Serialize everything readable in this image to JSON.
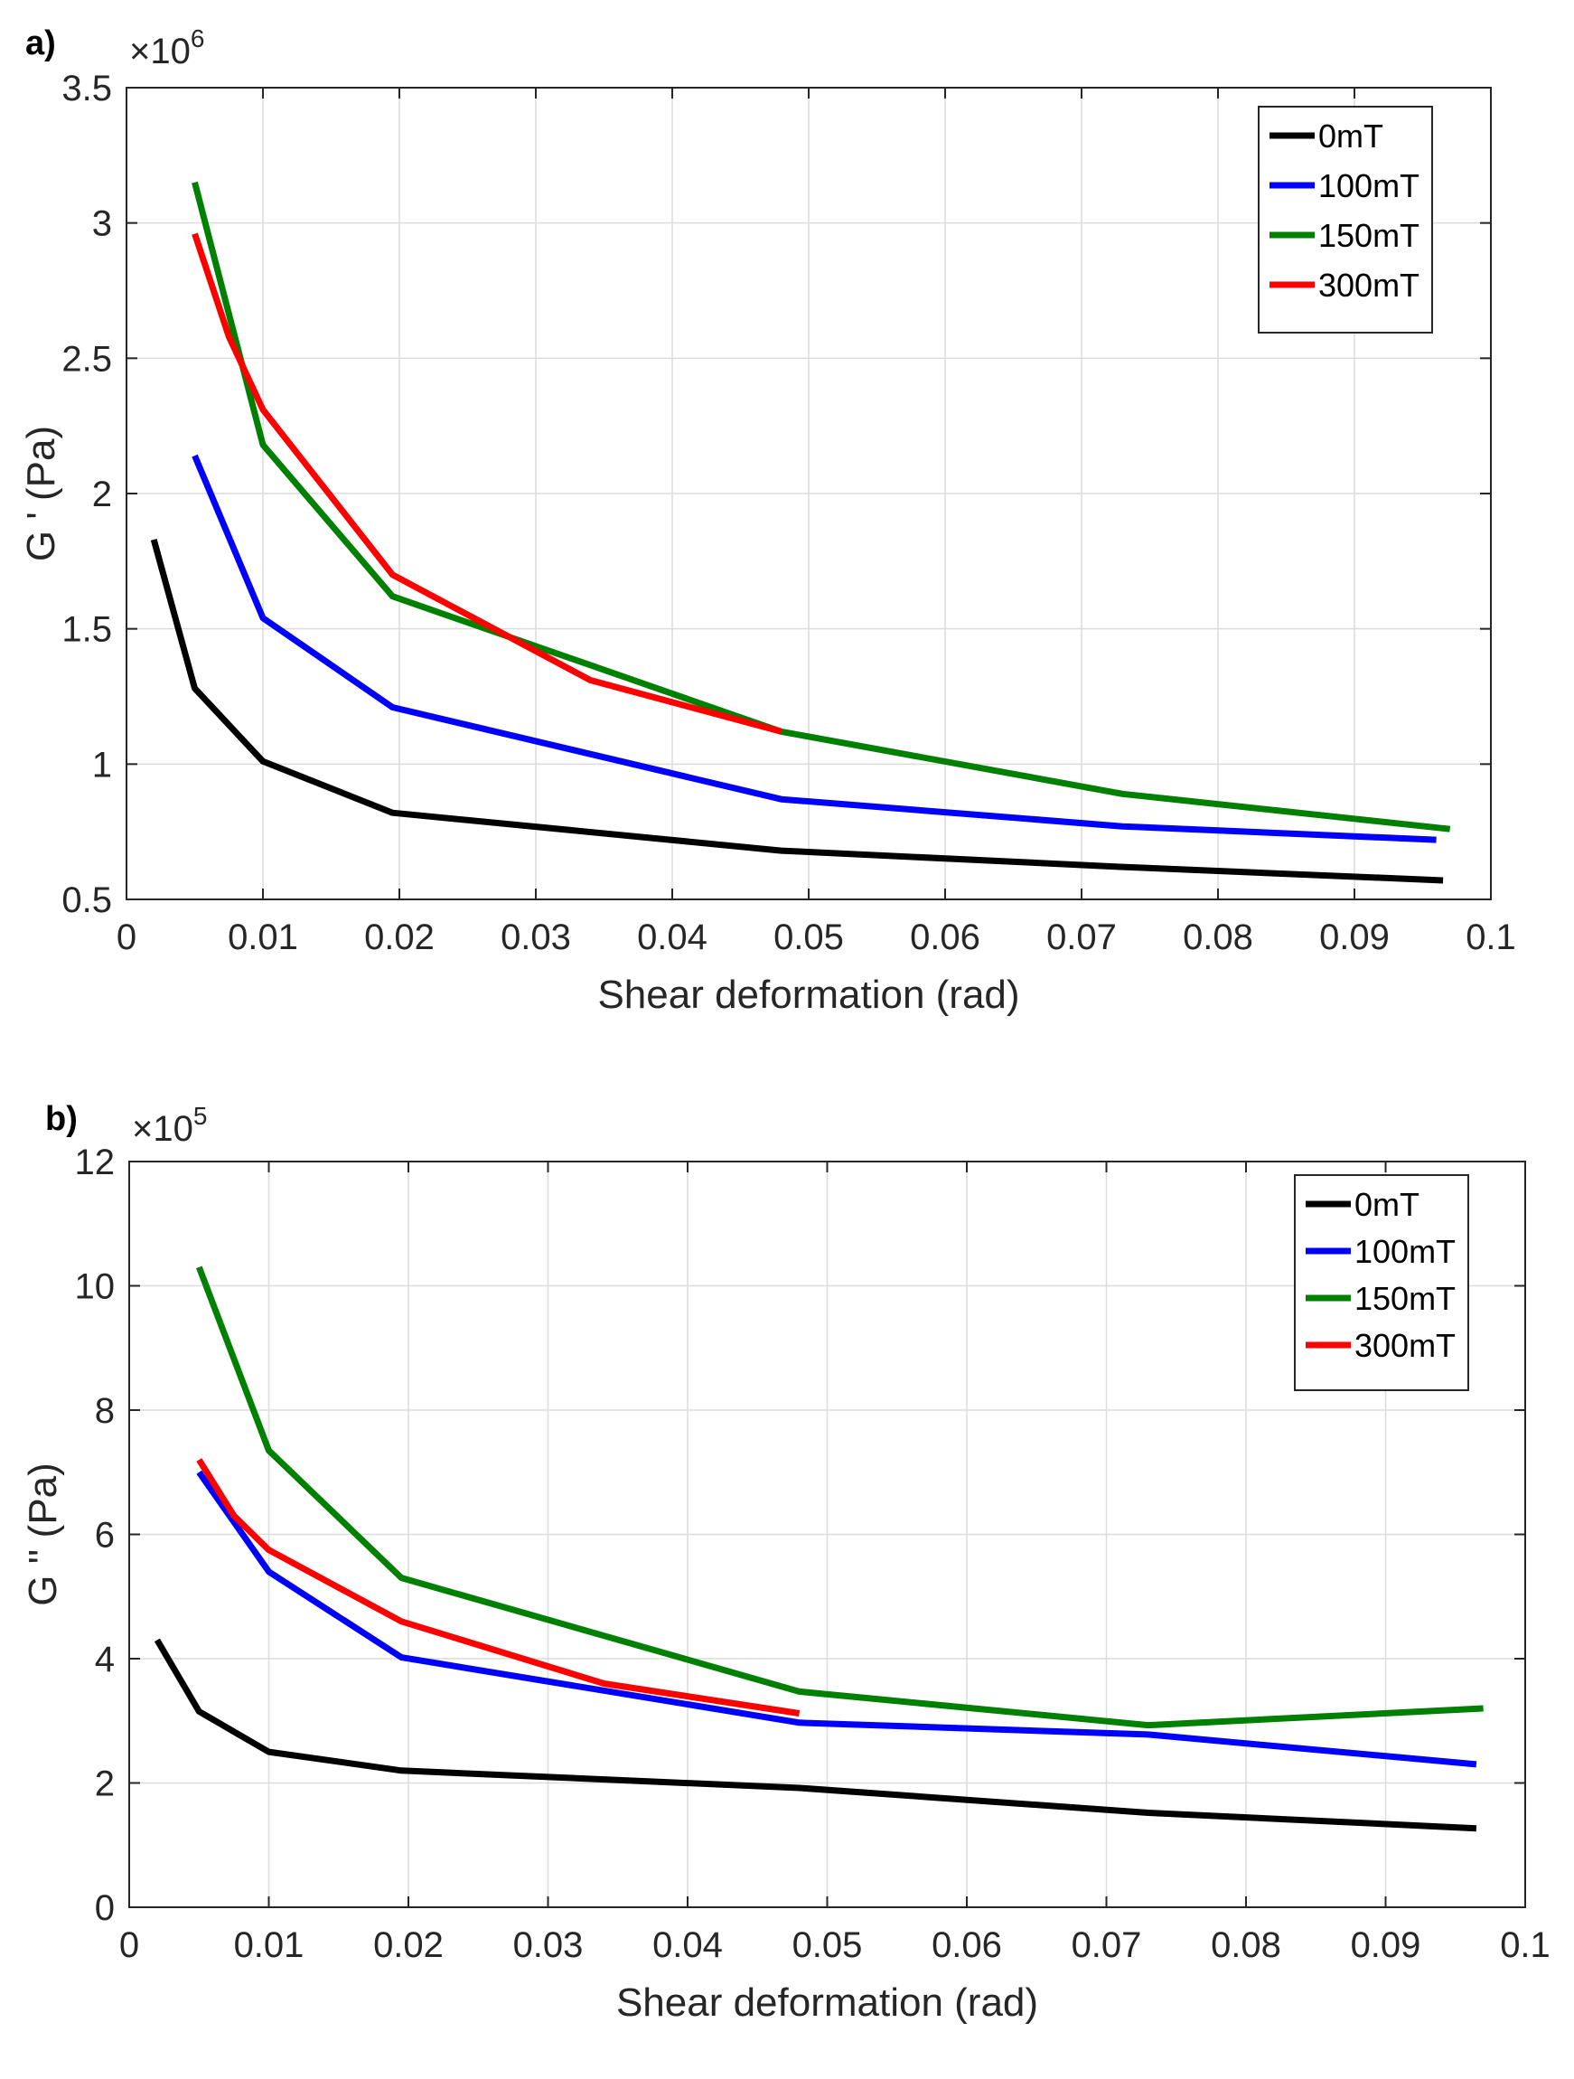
{
  "chart_data": [
    {
      "type": "line",
      "panel_label": "a)",
      "xlabel": "Shear deformation (rad)",
      "ylabel": "G ' (Pa)",
      "y_multiplier": "×10",
      "y_exponent": "6",
      "xlim": [
        0,
        0.1
      ],
      "ylim": [
        0.5,
        3.5
      ],
      "xticks": [
        0,
        0.01,
        0.02,
        0.03,
        0.04,
        0.05,
        0.06,
        0.07,
        0.08,
        0.09,
        0.1
      ],
      "xtick_labels": [
        "0",
        "0.01",
        "0.02",
        "0.03",
        "0.04",
        "0.05",
        "0.06",
        "0.07",
        "0.08",
        "0.09",
        "0.1"
      ],
      "yticks": [
        0.5,
        1,
        1.5,
        2,
        2.5,
        3,
        3.5
      ],
      "ytick_labels": [
        "0.5",
        "1",
        "1.5",
        "2",
        "2.5",
        "3",
        "3.5"
      ],
      "grid": true,
      "legend_position": "top-right",
      "series": [
        {
          "name": "0mT",
          "color": "#000000",
          "x": [
            0.002,
            0.005,
            0.01,
            0.0195,
            0.048,
            0.073,
            0.0965
          ],
          "y": [
            1.83,
            1.28,
            1.01,
            0.82,
            0.68,
            0.62,
            0.57
          ]
        },
        {
          "name": "100mT",
          "color": "#0000ff",
          "x": [
            0.005,
            0.01,
            0.0195,
            0.048,
            0.073,
            0.096
          ],
          "y": [
            2.14,
            1.54,
            1.21,
            0.87,
            0.77,
            0.72
          ]
        },
        {
          "name": "150mT",
          "color": "#008000",
          "x": [
            0.005,
            0.01,
            0.0195,
            0.048,
            0.073,
            0.097
          ],
          "y": [
            3.15,
            2.18,
            1.62,
            1.12,
            0.89,
            0.76
          ]
        },
        {
          "name": "300mT",
          "color": "#ff0000",
          "x": [
            0.005,
            0.0075,
            0.01,
            0.0195,
            0.034,
            0.048
          ],
          "y": [
            2.96,
            2.58,
            2.31,
            1.7,
            1.31,
            1.12
          ]
        }
      ]
    },
    {
      "type": "line",
      "panel_label": "b)",
      "xlabel": "Shear deformation (rad)",
      "ylabel": "G '' (Pa)",
      "y_multiplier": "×10",
      "y_exponent": "5",
      "xlim": [
        0,
        0.1
      ],
      "ylim": [
        0,
        12
      ],
      "xticks": [
        0,
        0.01,
        0.02,
        0.03,
        0.04,
        0.05,
        0.06,
        0.07,
        0.08,
        0.09,
        0.1
      ],
      "xtick_labels": [
        "0",
        "0.01",
        "0.02",
        "0.03",
        "0.04",
        "0.05",
        "0.06",
        "0.07",
        "0.08",
        "0.09",
        "0.1"
      ],
      "yticks": [
        0,
        2,
        4,
        6,
        8,
        10,
        12
      ],
      "ytick_labels": [
        "0",
        "2",
        "4",
        "6",
        "8",
        "10",
        "12"
      ],
      "grid": true,
      "legend_position": "top-right",
      "series": [
        {
          "name": "0mT",
          "color": "#000000",
          "x": [
            0.002,
            0.005,
            0.01,
            0.0195,
            0.048,
            0.073,
            0.0965
          ],
          "y": [
            4.3,
            3.15,
            2.5,
            2.2,
            1.92,
            1.52,
            1.27
          ]
        },
        {
          "name": "100mT",
          "color": "#0000ff",
          "x": [
            0.005,
            0.01,
            0.0195,
            0.048,
            0.073,
            0.0965
          ],
          "y": [
            7.0,
            5.4,
            4.02,
            2.97,
            2.78,
            2.3
          ]
        },
        {
          "name": "150mT",
          "color": "#008000",
          "x": [
            0.005,
            0.01,
            0.0195,
            0.048,
            0.073,
            0.097
          ],
          "y": [
            10.3,
            7.35,
            5.3,
            3.47,
            2.93,
            3.2
          ]
        },
        {
          "name": "300mT",
          "color": "#ff0000",
          "x": [
            0.005,
            0.0075,
            0.01,
            0.0195,
            0.034,
            0.048
          ],
          "y": [
            7.2,
            6.3,
            5.75,
            4.6,
            3.6,
            3.12
          ]
        }
      ]
    }
  ]
}
